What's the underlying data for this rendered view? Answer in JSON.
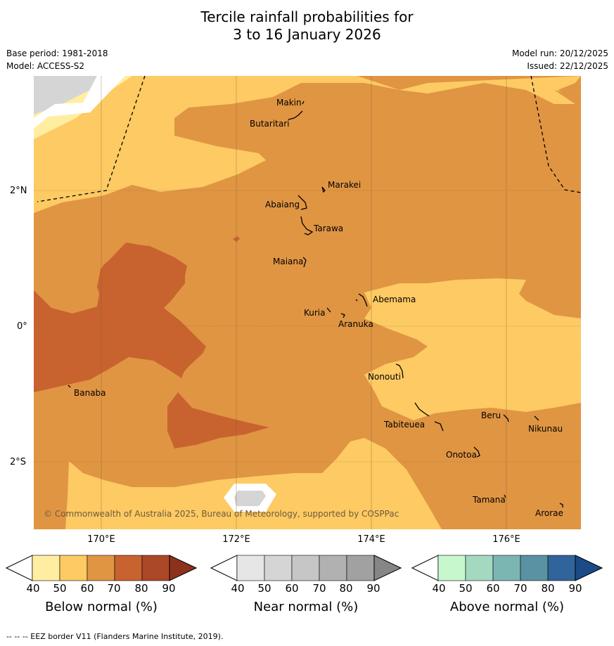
{
  "title_line1": "Tercile rainfall probabilities for",
  "title_line2": "3 to 16 January 2026",
  "base_period": "Base period: 1981-2018",
  "model": "Model: ACCESS-S2",
  "model_run": "Model run: 20/12/2025",
  "issued": "Issued: 22/12/2025",
  "copyright": "© Commonwealth of Australia 2025, Bureau of Meteorology, supported by COSPPac",
  "footer": "--  --  -- EEZ border V11 (Flanders Marine Institute, 2019).",
  "lat_labels": [
    "2°N",
    "0°",
    "2°S"
  ],
  "lon_labels": [
    "170°E",
    "172°E",
    "174°E",
    "176°E"
  ],
  "places": {
    "makin": "Makin",
    "butaritari": "Butaritari",
    "marakei": "Marakei",
    "abaiang": "Abaiang",
    "tarawa": "Tarawa",
    "maiana": "Maiana",
    "abemama": "Abemama",
    "kuria": "Kuria",
    "aranuka": "Aranuka",
    "nonouti": "Nonouti",
    "banaba": "Banaba",
    "beru": "Beru",
    "tabiteuea": "Tabiteuea",
    "nikunau": "Nikunau",
    "onotoa": "Onotoa",
    "tamana": "Tamana",
    "arorae": "Arorae"
  },
  "colorbars": {
    "below": {
      "label": "Below normal (%)",
      "ticks": [
        "40",
        "50",
        "60",
        "70",
        "80",
        "90"
      ],
      "colors": [
        "#ffeea1",
        "#fdca63",
        "#e09543",
        "#c8632f",
        "#ab4827",
        "#8c321c"
      ]
    },
    "near": {
      "label": "Near normal (%)",
      "ticks": [
        "40",
        "50",
        "60",
        "70",
        "80",
        "90"
      ],
      "colors": [
        "#e6e6e6",
        "#d5d5d5",
        "#c6c6c6",
        "#b1b1b1",
        "#a1a1a1",
        "#868686"
      ]
    },
    "above": {
      "label": "Above normal (%)",
      "ticks": [
        "40",
        "50",
        "60",
        "70",
        "80",
        "90"
      ],
      "colors": [
        "#c7f7cc",
        "#a4d9c0",
        "#7bb6b3",
        "#5a92a3",
        "#30649a",
        "#1a4b86"
      ]
    }
  }
}
